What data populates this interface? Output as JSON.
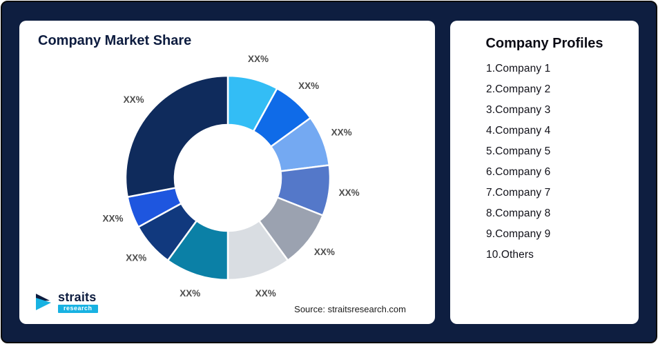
{
  "theme": {
    "background_navy": "#0E1E40",
    "card_white": "#ffffff",
    "title_navy": "#0d1c3f",
    "logo_cyan": "#18b2e2",
    "label_gray": "#4d4d4d"
  },
  "left_card": {
    "title": "Company Market Share",
    "source_text": "Source: straitsresearch.com",
    "logo": {
      "name": "straits",
      "sub": "research"
    }
  },
  "right_card": {
    "title": "Company Profiles",
    "items": [
      "1.Company 1",
      "2.Company 2",
      "3.Company 3",
      "4.Company 4",
      "5.Company 5",
      "6.Company 6",
      "7.Company 7",
      "8.Company 8",
      "9.Company 9",
      "10.Others"
    ]
  },
  "chart_data": {
    "type": "pie",
    "subtype": "donut",
    "title": "Company Market Share",
    "categories": [
      "Company 1",
      "Company 2",
      "Company 3",
      "Company 4",
      "Company 5",
      "Company 6",
      "Company 7",
      "Company 8",
      "Company 9",
      "Others"
    ],
    "values": [
      8,
      7,
      8,
      8,
      9,
      10,
      10,
      7,
      5,
      28
    ],
    "value_labels": [
      "XX%",
      "XX%",
      "XX%",
      "XX%",
      "XX%",
      "XX%",
      "XX%",
      "XX%",
      "XX%",
      "XX%"
    ],
    "colors": [
      "#33BDF5",
      "#0F6BE8",
      "#74A9F2",
      "#5478C9",
      "#9BA2B0",
      "#D9DDE2",
      "#0B80A6",
      "#11397E",
      "#1E56DF",
      "#0F2B5C"
    ],
    "legend": "none",
    "start_angle_deg": 0,
    "direction": "clockwise",
    "source": "Source: straitsresearch.com"
  }
}
